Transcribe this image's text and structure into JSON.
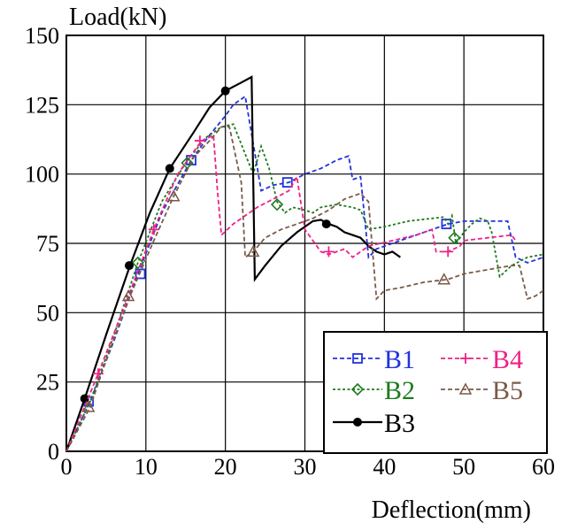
{
  "chart_data": {
    "type": "line",
    "xlabel": "Deflection(mm)",
    "ylabel": "Load(kN)",
    "xlim": [
      0,
      60
    ],
    "ylim": [
      0,
      150
    ],
    "x_ticks": [
      "0",
      "10",
      "20",
      "30",
      "40",
      "50",
      "60"
    ],
    "y_ticks": [
      "0",
      "25",
      "50",
      "75",
      "100",
      "125",
      "150"
    ],
    "grid": true,
    "legend_position": "bottom-right",
    "series": [
      {
        "name": "B1",
        "color": "#2233dd",
        "dash": "dashed",
        "marker": "square",
        "points": [
          [
            0,
            0
          ],
          [
            3,
            18
          ],
          [
            6,
            40
          ],
          [
            9,
            64
          ],
          [
            12,
            86
          ],
          [
            15.7,
            105
          ],
          [
            18,
            114
          ],
          [
            20,
            121
          ],
          [
            21,
            125
          ],
          [
            22.5,
            128
          ],
          [
            24.5,
            94
          ],
          [
            26,
            96
          ],
          [
            28,
            97
          ],
          [
            30,
            100
          ],
          [
            32,
            102
          ],
          [
            34,
            105
          ],
          [
            35.5,
            106.5
          ],
          [
            36,
            98
          ],
          [
            37,
            99
          ],
          [
            38,
            70
          ],
          [
            39,
            73
          ],
          [
            41,
            75
          ],
          [
            44,
            78
          ],
          [
            47,
            81
          ],
          [
            48,
            82
          ],
          [
            50,
            83
          ],
          [
            52,
            83
          ],
          [
            54,
            83
          ],
          [
            55.5,
            83
          ],
          [
            56.5,
            70
          ],
          [
            58,
            68
          ],
          [
            60,
            70
          ]
        ],
        "marker_points": [
          [
            2.8,
            18
          ],
          [
            9.3,
            64
          ],
          [
            15.7,
            105
          ],
          [
            27.8,
            97
          ],
          [
            47.8,
            82
          ]
        ]
      },
      {
        "name": "B2",
        "color": "#1f7a1f",
        "dash": "dotted",
        "marker": "diamond",
        "points": [
          [
            0,
            0
          ],
          [
            3,
            18
          ],
          [
            6,
            42
          ],
          [
            9,
            68
          ],
          [
            12,
            90
          ],
          [
            15,
            104
          ],
          [
            17.5,
            113
          ],
          [
            19.5,
            117
          ],
          [
            21,
            118
          ],
          [
            23.5,
            100
          ],
          [
            24.5,
            110
          ],
          [
            25.5,
            102
          ],
          [
            26.5,
            90
          ],
          [
            27.5,
            86
          ],
          [
            28.5,
            88
          ],
          [
            30,
            87
          ],
          [
            31,
            86
          ],
          [
            32,
            88
          ],
          [
            34,
            89
          ],
          [
            36,
            88
          ],
          [
            37,
            87
          ],
          [
            38,
            80
          ],
          [
            40,
            81
          ],
          [
            43,
            83
          ],
          [
            46,
            84
          ],
          [
            47.5,
            84.5
          ],
          [
            48,
            82
          ],
          [
            48.5,
            85
          ],
          [
            49,
            75
          ],
          [
            50,
            79
          ],
          [
            51,
            82
          ],
          [
            52,
            84
          ],
          [
            53,
            83
          ],
          [
            53.5,
            79
          ],
          [
            54.5,
            63
          ],
          [
            56,
            67
          ],
          [
            58,
            70
          ],
          [
            60,
            71
          ]
        ],
        "marker_points": [
          [
            9,
            68
          ],
          [
            15.2,
            104
          ],
          [
            26.5,
            89
          ],
          [
            48.8,
            77
          ]
        ]
      },
      {
        "name": "B3",
        "color": "#000000",
        "dash": "solid",
        "marker": "circle",
        "points": [
          [
            0,
            0
          ],
          [
            2.3,
            19
          ],
          [
            5,
            42
          ],
          [
            8,
            67
          ],
          [
            10.5,
            86
          ],
          [
            13,
            102
          ],
          [
            16,
            115
          ],
          [
            18,
            124
          ],
          [
            20,
            130
          ],
          [
            22,
            133
          ],
          [
            23.3,
            135
          ],
          [
            23.7,
            62
          ],
          [
            25,
            67
          ],
          [
            27,
            74
          ],
          [
            29,
            79
          ],
          [
            31,
            83
          ],
          [
            32,
            83.5
          ],
          [
            33,
            82
          ],
          [
            34,
            81
          ],
          [
            35,
            79
          ],
          [
            36,
            78
          ],
          [
            37,
            77
          ],
          [
            38,
            74
          ],
          [
            39,
            72
          ],
          [
            40,
            71
          ],
          [
            41,
            72
          ],
          [
            41.5,
            71
          ],
          [
            42,
            70
          ]
        ],
        "marker_points": [
          [
            2.3,
            19
          ],
          [
            7.9,
            67
          ],
          [
            13,
            102
          ],
          [
            20,
            130
          ],
          [
            32.7,
            82
          ]
        ]
      },
      {
        "name": "B4",
        "color": "#ee2288",
        "dash": "dashed",
        "marker": "plus",
        "points": [
          [
            0,
            0
          ],
          [
            4,
            28
          ],
          [
            7,
            50
          ],
          [
            11,
            80
          ],
          [
            14,
            100
          ],
          [
            17,
            112
          ],
          [
            18.5,
            114
          ],
          [
            19,
            94
          ],
          [
            19.5,
            78
          ],
          [
            21,
            82
          ],
          [
            24,
            88
          ],
          [
            26,
            91
          ],
          [
            28,
            94
          ],
          [
            29,
            99
          ],
          [
            30,
            80
          ],
          [
            31,
            76
          ],
          [
            32,
            72
          ],
          [
            33,
            71
          ],
          [
            34,
            72
          ],
          [
            35,
            73
          ],
          [
            36,
            70
          ],
          [
            38,
            74
          ],
          [
            41,
            76
          ],
          [
            44,
            78
          ],
          [
            46,
            80
          ],
          [
            46.5,
            72
          ],
          [
            48,
            72
          ],
          [
            49.5,
            74
          ],
          [
            50,
            76
          ],
          [
            53,
            77
          ],
          [
            56,
            78
          ],
          [
            56.5,
            76
          ]
        ],
        "marker_points": [
          [
            4,
            28
          ],
          [
            11,
            80
          ],
          [
            16.8,
            112
          ],
          [
            33,
            72
          ],
          [
            48,
            72
          ]
        ]
      },
      {
        "name": "B5",
        "color": "#7a5a48",
        "dash": "dashed",
        "marker": "triangle",
        "points": [
          [
            0,
            0
          ],
          [
            3,
            16
          ],
          [
            5,
            33
          ],
          [
            8,
            56
          ],
          [
            11,
            76
          ],
          [
            13.5,
            92
          ],
          [
            16,
            106
          ],
          [
            18,
            112
          ],
          [
            19.5,
            117
          ],
          [
            20.5,
            117
          ],
          [
            22,
            97
          ],
          [
            22.5,
            70
          ],
          [
            23.5,
            72
          ],
          [
            25,
            77
          ],
          [
            27,
            80
          ],
          [
            29,
            82
          ],
          [
            31,
            84
          ],
          [
            33,
            87
          ],
          [
            35,
            91
          ],
          [
            37,
            93
          ],
          [
            38,
            90
          ],
          [
            39,
            55
          ],
          [
            40,
            58
          ],
          [
            42,
            59
          ],
          [
            45,
            61
          ],
          [
            48,
            62
          ],
          [
            50,
            64
          ],
          [
            52,
            65
          ],
          [
            54,
            66
          ],
          [
            56,
            67
          ],
          [
            57,
            67
          ],
          [
            58,
            55
          ],
          [
            59,
            56
          ],
          [
            60,
            58
          ]
        ],
        "marker_points": [
          [
            2.8,
            16
          ],
          [
            7.8,
            56
          ],
          [
            13.5,
            92
          ],
          [
            23.5,
            72
          ],
          [
            47.5,
            62
          ]
        ]
      }
    ]
  }
}
